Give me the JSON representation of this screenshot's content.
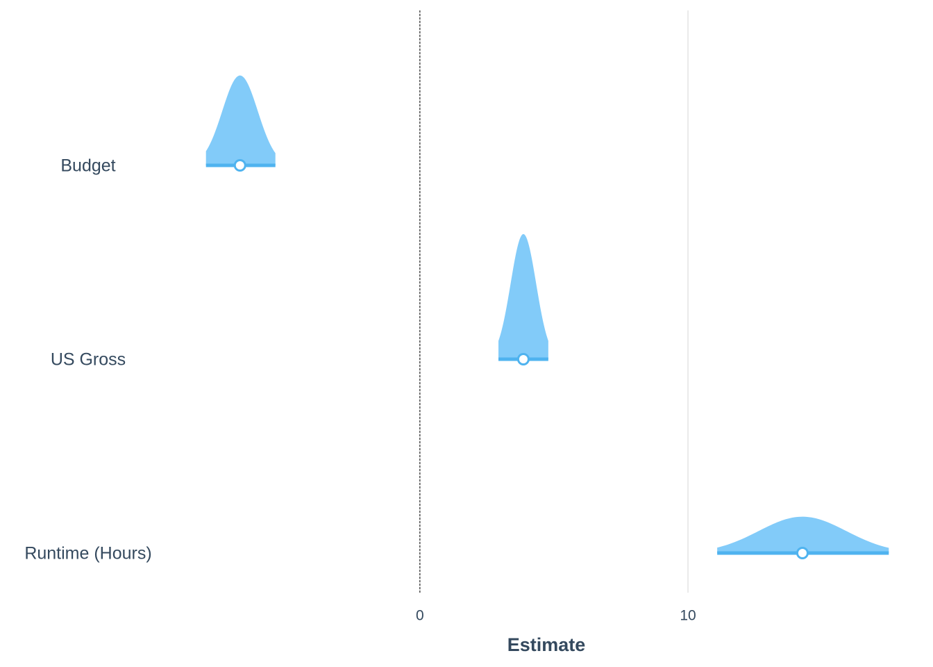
{
  "chart_data": {
    "type": "coefficient-density",
    "xlabel": "Estimate",
    "categories": [
      "Budget",
      "US Gross",
      "Runtime (Hours)"
    ],
    "values": [
      -6.71,
      3.86,
      14.27
    ],
    "ci_low": [
      -7.98,
      2.93,
      11.09
    ],
    "ci_high": [
      -5.39,
      4.79,
      17.49
    ],
    "color": "#82cbf9",
    "line_color": "#4fb3ef",
    "xlim": [
      -9.5,
      18
    ],
    "xticks": [
      0,
      10
    ],
    "reference_line": 0,
    "grid": true
  }
}
